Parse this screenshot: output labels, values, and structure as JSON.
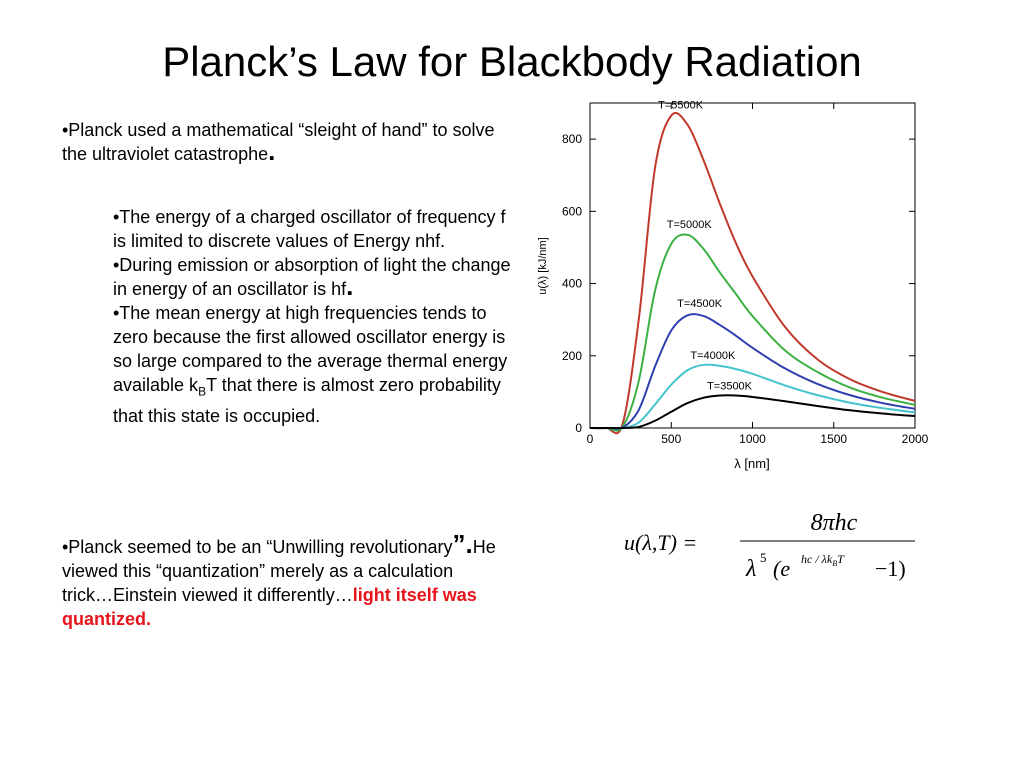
{
  "slide": {
    "title": "Planck’s Law for Blackbody Radiation",
    "bullet1": {
      "text": "•Planck used a mathematical “sleight of hand” to solve the ultraviolet catastrophe",
      "period": "."
    },
    "sub_bullets": {
      "s1": "•The energy of a charged oscillator of frequency f is limited to discrete values of Energy nhf.",
      "s2_text": "•During emission or absorption of light the change in energy of an oscillator is hf",
      "s2_period": ".",
      "s3_text_a": "•The mean energy at high frequencies tends to zero because the first allowed oscillator energy is so large compared to the average thermal energy available k",
      "s3_sub": "B",
      "s3_text_b": "T that there is almost zero probability that this state is occupied."
    },
    "bullet3": {
      "text_a": "•Planck seemed to be an “Unwilling revolutionary",
      "big": "”.",
      "text_b": "He viewed this “quantization” merely as a calculation trick…Einstein viewed it differently…",
      "highlight": "light itself was quantized."
    },
    "formula": {
      "lhs": "u(λ,T) =",
      "numerator": "8πhc",
      "denom_lambda": "λ",
      "denom_exp5": "5",
      "denom_open": "(e",
      "denom_exponent": "hc / λk",
      "denom_exponent_sub": "B",
      "denom_exponent_T": "T",
      "denom_close": "−1)"
    }
  },
  "chart_data": {
    "type": "line",
    "xlabel": "λ [nm]",
    "ylabel": "u(λ) [kJ/nm]",
    "xlim": [
      0,
      2000
    ],
    "ylim": [
      0,
      900
    ],
    "xticks": [
      0,
      500,
      1000,
      1500,
      2000
    ],
    "yticks": [
      0,
      200,
      400,
      600,
      800
    ],
    "grid": false,
    "x": [
      0,
      100,
      200,
      300,
      400,
      500,
      600,
      700,
      800,
      900,
      1000,
      1200,
      1400,
      1600,
      1800,
      2000
    ],
    "series": [
      {
        "name": "T=5500K",
        "color": "#c0392b",
        "peak_x": 527,
        "peak_y": 868,
        "values": [
          0,
          0,
          10,
          300,
          720,
          865,
          840,
          740,
          620,
          510,
          420,
          280,
          190,
          135,
          100,
          75
        ]
      },
      {
        "name": "T=5000K",
        "color": "#3cb043",
        "peak_x": 580,
        "peak_y": 537,
        "values": [
          0,
          0,
          3,
          130,
          380,
          510,
          535,
          495,
          430,
          370,
          310,
          215,
          155,
          112,
          84,
          64
        ]
      },
      {
        "name": "T=4500K",
        "color": "#2f3fb0",
        "peak_x": 644,
        "peak_y": 318,
        "values": [
          0,
          0,
          1,
          50,
          170,
          270,
          312,
          310,
          285,
          255,
          222,
          165,
          122,
          91,
          69,
          53
        ]
      },
      {
        "name": "T=4000K",
        "color": "#45c4cc",
        "peak_x": 725,
        "peak_y": 175,
        "values": [
          0,
          0,
          0,
          15,
          65,
          120,
          160,
          175,
          172,
          163,
          150,
          118,
          91,
          70,
          55,
          43
        ]
      },
      {
        "name": "T=3500K",
        "color": "#000000",
        "peak_x": 828,
        "peak_y": 90,
        "values": [
          0,
          0,
          0,
          3,
          20,
          45,
          69,
          84,
          90,
          90,
          86,
          74,
          61,
          49,
          40,
          33
        ]
      }
    ]
  }
}
